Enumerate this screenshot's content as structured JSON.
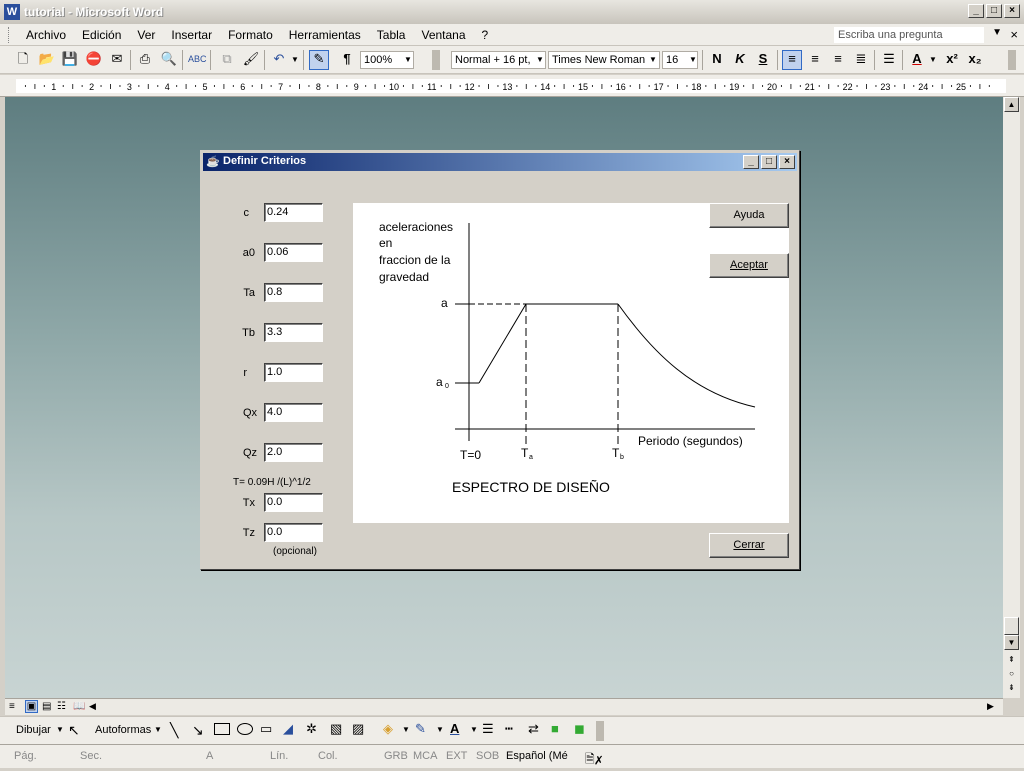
{
  "window": {
    "title": "tutorial - Microsoft Word"
  },
  "menu": {
    "items": [
      "Archivo",
      "Edición",
      "Ver",
      "Insertar",
      "Formato",
      "Herramientas",
      "Tabla",
      "Ventana",
      "?"
    ],
    "ask_placeholder": "Escriba una pregunta"
  },
  "toolbar": {
    "zoom": "100%",
    "style": "Normal + 16 pt,",
    "font": "Times New Roman",
    "size": "16",
    "bold": "N",
    "italic": "K",
    "underline": "S"
  },
  "ruler": {
    "numbers": [
      "1",
      "2",
      "3",
      "4",
      "5",
      "6",
      "7",
      "8",
      "9",
      "10",
      "11",
      "12",
      "13",
      "14",
      "15",
      "16",
      "17",
      "18",
      "19",
      "20",
      "21",
      "22",
      "23",
      "24",
      "25"
    ]
  },
  "drawbar": {
    "draw": "Dibujar",
    "autoshapes": "Autoformas"
  },
  "status": {
    "pag": "Pág.",
    "sec": "Sec.",
    "a": "A",
    "lin": "Lín.",
    "col": "Col.",
    "grb": "GRB",
    "mca": "MCA",
    "ext": "EXT",
    "sob": "SOB",
    "lang": "Español (Mé"
  },
  "dialog": {
    "title": "Definir Criterios",
    "fields": [
      {
        "label": "c",
        "value": "0.24"
      },
      {
        "label": "a0",
        "value": "0.06"
      },
      {
        "label": "Ta",
        "value": "0.8"
      },
      {
        "label": "Tb",
        "value": "3.3"
      },
      {
        "label": "r",
        "value": "1.0"
      },
      {
        "label": "Qx",
        "value": "4.0"
      },
      {
        "label": "Qz",
        "value": "2.0"
      }
    ],
    "formula": "T= 0.09H /(L)^1/2",
    "tx": {
      "label": "Tx",
      "value": "0.0"
    },
    "tz": {
      "label": "Tz",
      "value": "0.0"
    },
    "optional": "(opcional)",
    "help_button": "Ayuda",
    "accept_button": "Aceptar",
    "close_button": "Cerrar",
    "plot": {
      "y_line1": "aceleraciones",
      "y_line2": "en",
      "y_line3": "fraccion de la",
      "y_line4": "gravedad",
      "label_a": "a",
      "label_a0": "a",
      "label_a0_sub": "0",
      "x_label": "Periodo (segundos)",
      "t0": "T=0",
      "ta": "T",
      "ta_sub": "a",
      "tb": "T",
      "tb_sub": "b",
      "caption": "ESPECTRO DE DISEÑO"
    }
  }
}
